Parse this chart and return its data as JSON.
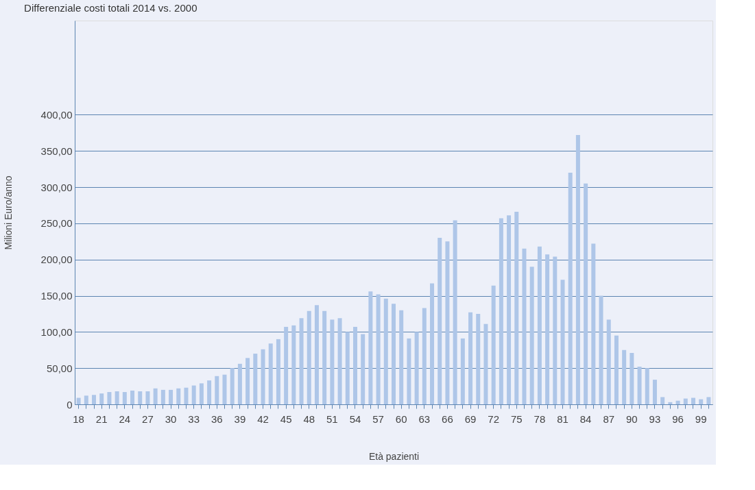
{
  "chart_data": {
    "type": "bar",
    "title": "Differenziale costi totali 2014 vs. 2000",
    "xlabel": "Età pazienti",
    "ylabel": "Milioni Euro/anno",
    "categories": [
      "18",
      null,
      null,
      "21",
      null,
      null,
      "24",
      null,
      null,
      "27",
      null,
      null,
      "30",
      null,
      null,
      "33",
      null,
      null,
      "36",
      null,
      null,
      "39",
      null,
      null,
      "42",
      null,
      null,
      "45",
      null,
      null,
      "48",
      null,
      null,
      "51",
      null,
      null,
      "54",
      null,
      null,
      "57",
      null,
      null,
      "60",
      null,
      null,
      "63",
      null,
      null,
      "66",
      null,
      null,
      "69",
      null,
      null,
      "72",
      null,
      null,
      "75",
      null,
      null,
      "78",
      null,
      null,
      "81",
      null,
      null,
      "84",
      null,
      null,
      "87",
      null,
      null,
      "90",
      null,
      null,
      "93",
      null,
      null,
      "96",
      null,
      null,
      "99",
      null
    ],
    "values": [
      9,
      12,
      13,
      15,
      17,
      18,
      17,
      19,
      18,
      18,
      22,
      20,
      20,
      22,
      23,
      26,
      29,
      33,
      39,
      41,
      50,
      56,
      64,
      70,
      76,
      84,
      90,
      107,
      109,
      119,
      129,
      137,
      129,
      117,
      119,
      100,
      107,
      97,
      156,
      152,
      146,
      139,
      130,
      91,
      100,
      133,
      167,
      230,
      225,
      254,
      91,
      127,
      125,
      111,
      164,
      257,
      261,
      266,
      215,
      190,
      218,
      207,
      204,
      172,
      320,
      372,
      305,
      222,
      150,
      117,
      95,
      75,
      71,
      52,
      50,
      34,
      10,
      3,
      5,
      8,
      9,
      7,
      10
    ],
    "color": "#aec6e8",
    "ylim": [
      0,
      530
    ],
    "yticks": [
      {
        "value": 0,
        "label": "0"
      },
      {
        "value": 50,
        "label": "50,00"
      },
      {
        "value": 100,
        "label": "100,00"
      },
      {
        "value": 150,
        "label": "150,00"
      },
      {
        "value": 200,
        "label": "200,00"
      },
      {
        "value": 250,
        "label": "250,00"
      },
      {
        "value": 300,
        "label": "300,00"
      },
      {
        "value": 350,
        "label": "350,00"
      },
      {
        "value": 400,
        "label": "400,00"
      }
    ],
    "grid": "y"
  }
}
